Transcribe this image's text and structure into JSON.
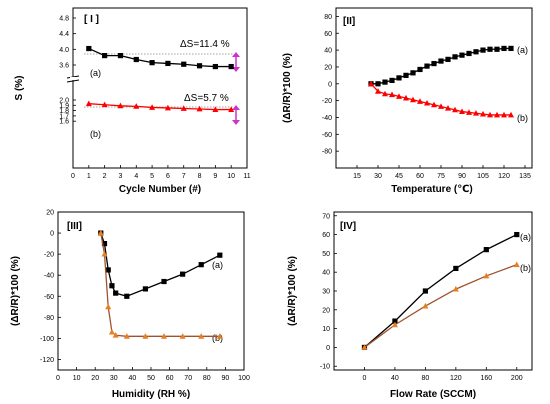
{
  "colors": {
    "black": "#000000",
    "red": "#ff0000",
    "brown": "#a0522d",
    "marker_brown": "#e67e22",
    "arrow": "#cc33cc",
    "dotted": "#888888"
  },
  "chart_data": [
    {
      "type": "line",
      "panel_label": "[ I ]",
      "xlabel": "Cycle Number (#)",
      "ylabel": "S (%)",
      "xlim": [
        0,
        11
      ],
      "ylim": [
        1.5,
        4.9
      ],
      "axis_break": true,
      "x_ticks": [
        "0",
        "1",
        "2",
        "3",
        "4",
        "5",
        "6",
        "7",
        "8",
        "9",
        "10",
        "11"
      ],
      "y_ticks": [
        {
          "v": 4.8,
          "label": "4.8"
        },
        {
          "v": 4.4,
          "label": "4.4"
        },
        {
          "v": 4.0,
          "label": "4.0"
        },
        {
          "v": 3.6,
          "label": "3.6"
        },
        {
          "v": 2.0,
          "label": "2.0"
        },
        {
          "v": 1.9,
          "label": "1.9"
        },
        {
          "v": 1.8,
          "label": "1.8"
        },
        {
          "v": 1.7,
          "label": "1.7"
        },
        {
          "v": 1.6,
          "label": "1.6"
        }
      ],
      "series": [
        {
          "label": "(a)",
          "marker": "square",
          "color": "#000000",
          "x": [
            1,
            2,
            3,
            4,
            5,
            6,
            7,
            8,
            9,
            10
          ],
          "y": [
            4.02,
            3.84,
            3.84,
            3.74,
            3.66,
            3.64,
            3.62,
            3.58,
            3.56,
            3.56
          ]
        },
        {
          "label": "(b)",
          "marker": "triangle",
          "color": "#ff0000",
          "x": [
            1,
            2,
            3,
            4,
            5,
            6,
            7,
            8,
            9,
            10
          ],
          "y": [
            1.93,
            1.91,
            1.89,
            1.88,
            1.86,
            1.85,
            1.84,
            1.83,
            1.82,
            1.82
          ]
        }
      ],
      "annotations": [
        "ΔS=11.4 %",
        "ΔS=5.7 %"
      ]
    },
    {
      "type": "line",
      "panel_label": "[II]",
      "xlabel": "Temperature (℃)",
      "ylabel": "(ΔR/R)*100 (%)",
      "xlim": [
        0,
        140
      ],
      "ylim": [
        -100,
        90
      ],
      "x_ticks": [
        "15",
        "30",
        "45",
        "60",
        "75",
        "90",
        "105",
        "120",
        "135"
      ],
      "y_ticks": [
        "80",
        "60",
        "40",
        "20",
        "0",
        "-20",
        "-40",
        "-60",
        "-80"
      ],
      "series": [
        {
          "label": "(a)",
          "marker": "square",
          "color": "#000000",
          "x": [
            25,
            30,
            35,
            40,
            45,
            50,
            55,
            60,
            65,
            70,
            75,
            80,
            85,
            90,
            95,
            100,
            105,
            110,
            115,
            120,
            125
          ],
          "y": [
            0,
            0,
            2,
            4,
            7,
            10,
            13,
            17,
            21,
            24,
            27,
            29,
            32,
            34,
            36,
            38,
            40,
            41,
            41,
            42,
            42
          ]
        },
        {
          "label": "(b)",
          "marker": "triangle",
          "color": "#ff0000",
          "x": [
            25,
            30,
            35,
            40,
            45,
            50,
            55,
            60,
            65,
            70,
            75,
            80,
            85,
            90,
            95,
            100,
            105,
            110,
            115,
            120,
            125
          ],
          "y": [
            0,
            -9,
            -12,
            -13,
            -15,
            -17,
            -19,
            -21,
            -23,
            -25,
            -27,
            -29,
            -31,
            -33,
            -34,
            -35,
            -36,
            -37,
            -37,
            -37,
            -37
          ]
        }
      ]
    },
    {
      "type": "line",
      "panel_label": "[III]",
      "xlabel": "Humidity (RH %)",
      "ylabel": "(ΔR/R)*100 (%)",
      "xlim": [
        0,
        100
      ],
      "ylim": [
        -130,
        20
      ],
      "x_ticks": [
        "0",
        "10",
        "20",
        "30",
        "40",
        "50",
        "60",
        "70",
        "80",
        "90",
        "100"
      ],
      "y_ticks": [
        "20",
        "0",
        "-20",
        "-40",
        "-60",
        "-80",
        "-100",
        "-120"
      ],
      "series": [
        {
          "label": "(a)",
          "marker": "square",
          "color": "#000000",
          "x": [
            23,
            25,
            27,
            29,
            31,
            37,
            47,
            57,
            67,
            77,
            87
          ],
          "y": [
            0,
            -10,
            -35,
            -50,
            -57,
            -60,
            -53,
            -46,
            -39,
            -30,
            -21
          ]
        },
        {
          "label": "(b)",
          "marker": "triangle",
          "color": "#a0522d",
          "x": [
            23,
            25,
            27,
            29,
            31,
            37,
            47,
            57,
            67,
            77,
            87
          ],
          "y": [
            0,
            -20,
            -70,
            -94,
            -97,
            -98,
            -98,
            -98,
            -98,
            -98,
            -98
          ]
        }
      ]
    },
    {
      "type": "line",
      "panel_label": "[IV]",
      "xlabel": "Flow Rate (SCCM)",
      "ylabel": "(ΔR/R)*100 (%)",
      "xlim": [
        -40,
        220
      ],
      "ylim": [
        -12,
        72
      ],
      "x_ticks": [
        "0",
        "40",
        "80",
        "120",
        "160",
        "200"
      ],
      "y_ticks": [
        "70",
        "60",
        "50",
        "40",
        "30",
        "20",
        "10",
        "0",
        "-10"
      ],
      "series": [
        {
          "label": "(a)",
          "marker": "square",
          "color": "#000000",
          "x": [
            0,
            40,
            80,
            120,
            160,
            200
          ],
          "y": [
            0,
            14,
            30,
            42,
            52,
            60
          ]
        },
        {
          "label": "(b)",
          "marker": "triangle",
          "color": "#a0522d",
          "x": [
            0,
            40,
            80,
            120,
            160,
            200
          ],
          "y": [
            0,
            12,
            22,
            31,
            38,
            44
          ]
        }
      ]
    }
  ]
}
